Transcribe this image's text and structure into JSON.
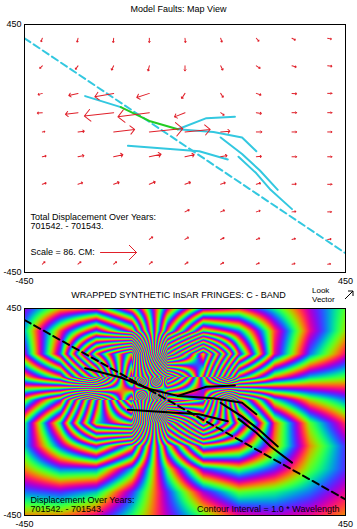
{
  "chart_data": [
    {
      "type": "vector",
      "title": "Model Faults: Map View",
      "xlim": [
        -450,
        450
      ],
      "ylim": [
        -450,
        450
      ],
      "xticks": [
        -450,
        450
      ],
      "yticks": [
        -450,
        450
      ],
      "color": "#e0202a",
      "annotation": [
        "Total Displacement Over Years:",
        "701542. - 701543."
      ],
      "scale_label": "Scale = 86. CM:",
      "scale_value": 86,
      "x": [
        -400,
        -300,
        -200,
        -100,
        0,
        100,
        200,
        300,
        400,
        -400,
        -300,
        -200,
        -100,
        0,
        100,
        200,
        300,
        400,
        -400,
        -300,
        -200,
        -100,
        0,
        100,
        200,
        300,
        400,
        -400,
        -300,
        -200,
        -100,
        0,
        100,
        200,
        300,
        400,
        -400,
        -300,
        -200,
        -100,
        0,
        100,
        200,
        300,
        400,
        -400,
        -300,
        -200,
        -100,
        0,
        100,
        200,
        300,
        400,
        -400,
        -300,
        -200,
        -100,
        0,
        100,
        200,
        300,
        400,
        0,
        100,
        200,
        300,
        400,
        -100,
        0,
        100,
        200,
        300,
        400,
        -400,
        -300,
        -200,
        -100,
        0,
        100,
        200,
        300,
        400
      ],
      "y": [
        400,
        400,
        400,
        400,
        400,
        400,
        400,
        400,
        400,
        300,
        300,
        300,
        300,
        300,
        300,
        300,
        300,
        300,
        200,
        200,
        200,
        200,
        200,
        200,
        200,
        200,
        200,
        130,
        130,
        130,
        130,
        130,
        130,
        130,
        130,
        130,
        60,
        60,
        60,
        60,
        60,
        60,
        60,
        60,
        60,
        -30,
        -30,
        -30,
        -30,
        -30,
        -30,
        -30,
        -30,
        -30,
        -130,
        -130,
        -130,
        -130,
        -130,
        -130,
        -130,
        -130,
        -130,
        -230,
        -230,
        -230,
        -230,
        -230,
        -330,
        -330,
        -330,
        -330,
        -330,
        -330,
        -420,
        -420,
        -420,
        -420,
        -420,
        -420,
        -420,
        -420,
        -420
      ],
      "u": [
        -3,
        -2,
        -1,
        0,
        1,
        3,
        6,
        8,
        9,
        -6,
        -6,
        -5,
        -3,
        0,
        5,
        9,
        10,
        10,
        -10,
        -22,
        -45,
        -30,
        -8,
        6,
        11,
        11,
        10,
        -12,
        -30,
        -70,
        -75,
        -25,
        8,
        12,
        11,
        10,
        6,
        15,
        50,
        80,
        60,
        22,
        13,
        11,
        10,
        9,
        14,
        22,
        28,
        22,
        15,
        12,
        11,
        10,
        9,
        11,
        13,
        14,
        13,
        11,
        10,
        10,
        10,
        10,
        9,
        9,
        9,
        9,
        8,
        8,
        8,
        8,
        8,
        8,
        6,
        7,
        7,
        7,
        7,
        7,
        7,
        7,
        7
      ],
      "v": [
        -8,
        -9,
        -10,
        -10,
        -10,
        -9,
        -7,
        -4,
        -2,
        -6,
        -8,
        -10,
        -12,
        -12,
        -10,
        -6,
        -3,
        -1,
        -3,
        -5,
        -8,
        -10,
        -12,
        -9,
        -4,
        -1,
        0,
        -1,
        -4,
        -8,
        -10,
        -10,
        -6,
        -2,
        0,
        0,
        1,
        2,
        6,
        8,
        6,
        2,
        0,
        0,
        0,
        2,
        3,
        5,
        6,
        5,
        3,
        1,
        0,
        0,
        3,
        4,
        5,
        6,
        5,
        4,
        3,
        1,
        0,
        5,
        4,
        3,
        1,
        0,
        6,
        5,
        4,
        3,
        2,
        1,
        6,
        6,
        6,
        6,
        5,
        4,
        3,
        2,
        1
      ],
      "faults": [
        {
          "color": "#33c8e0",
          "line_style": "dashed",
          "x": [
            -450,
            450
          ],
          "y": [
            400,
            -380
          ]
        },
        {
          "color": "#33c8e0",
          "line_style": "solid",
          "x": [
            -280,
            -180
          ],
          "y": [
            190,
            150
          ]
        },
        {
          "color": "#33c8e0",
          "line_style": "solid",
          "x": [
            -20,
            60,
            140
          ],
          "y": [
            70,
            110,
            115
          ]
        },
        {
          "color": "#33c8e0",
          "line_style": "solid",
          "x": [
            -20,
            80,
            160,
            200
          ],
          "y": [
            70,
            60,
            40,
            -10
          ]
        },
        {
          "color": "#33c8e0",
          "line_style": "solid",
          "x": [
            -160,
            -60,
            40,
            120
          ],
          "y": [
            10,
            0,
            -10,
            -40
          ]
        },
        {
          "color": "#33c8e0",
          "line_style": "solid",
          "x": [
            100,
            160,
            210,
            260
          ],
          "y": [
            40,
            -20,
            -80,
            -150
          ]
        },
        {
          "color": "#33c8e0",
          "line_style": "solid",
          "x": [
            150,
            200,
            240,
            300
          ],
          "y": [
            -30,
            -90,
            -150,
            -220
          ]
        },
        {
          "color": "#22cc22",
          "line_style": "solid",
          "x": [
            -180,
            -100,
            -20
          ],
          "y": [
            150,
            100,
            70
          ]
        }
      ]
    },
    {
      "type": "raster",
      "title": "WRAPPED SYNTHETIC InSAR FRINGES: C - BAND",
      "look_label": "Look Vector",
      "xlim": [
        -450,
        450
      ],
      "ylim": [
        -450,
        450
      ],
      "xticks": [
        -450,
        450
      ],
      "yticks": [
        -450,
        450
      ],
      "annotation": [
        "Displacement Over Years:",
        "701542. - 701543."
      ],
      "contour_label": "Contour Interval = 1.0 * Wavelength",
      "contour_interval": 1.0,
      "x": [
        -450,
        -350,
        -250,
        -150,
        -50,
        50,
        150,
        250,
        350,
        450
      ],
      "y": [
        450,
        350,
        250,
        150,
        50,
        -50,
        -150,
        -250,
        -350,
        -450
      ],
      "values": [
        [
          -2.2,
          -2.8,
          -2.9,
          -1.7,
          0.8,
          2.6,
          2.9,
          2.4,
          1.8,
          1.3
        ],
        [
          -2.5,
          -4.0,
          -5.4,
          -4.0,
          2.0,
          5.4,
          4.6,
          3.0,
          1.9,
          1.2
        ],
        [
          -2.2,
          -4.4,
          -9.0,
          -11.9,
          6.8,
          11.3,
          5.9,
          2.9,
          1.6,
          0.9
        ],
        [
          -0.8,
          -1.9,
          -5.7,
          -13.5,
          15.0,
          9.9,
          2.8,
          1.1,
          0.5,
          0.3
        ],
        [
          1.2,
          2.7,
          7.7,
          13.0,
          -14.0,
          -12.6,
          -4.0,
          -1.6,
          -0.8,
          -0.4
        ],
        [
          2.4,
          4.5,
          8.4,
          9.4,
          -5.1,
          -9.9,
          -5.8,
          -3.0,
          -1.7,
          -1.0
        ],
        [
          2.5,
          3.7,
          4.8,
          3.3,
          -1.6,
          -4.7,
          -4.2,
          -2.9,
          -1.9,
          -1.3
        ],
        [
          2.1,
          2.6,
          2.6,
          1.5,
          -0.7,
          -2.3,
          -2.7,
          -2.3,
          -1.7,
          -1.3
        ],
        [
          1.6,
          1.7,
          1.5,
          0.7,
          -0.3,
          -1.2,
          -1.7,
          -1.6,
          -1.4,
          -1.1
        ],
        [
          1.1,
          1.1,
          0.9,
          0.4,
          -0.2,
          -0.7,
          -1.1,
          -1.2,
          -1.1,
          -0.9
        ]
      ],
      "faults": [
        {
          "color": "#000000",
          "line_style": "dashed",
          "x": [
            -450,
            450
          ],
          "y": [
            400,
            -380
          ]
        },
        {
          "color": "#000000",
          "line_style": "solid",
          "x": [
            -280,
            -180
          ],
          "y": [
            190,
            150
          ]
        },
        {
          "color": "#000000",
          "line_style": "solid",
          "x": [
            -20,
            60,
            140
          ],
          "y": [
            70,
            110,
            115
          ]
        },
        {
          "color": "#000000",
          "line_style": "solid",
          "x": [
            -20,
            80,
            160,
            200
          ],
          "y": [
            70,
            60,
            40,
            -10
          ]
        },
        {
          "color": "#000000",
          "line_style": "solid",
          "x": [
            -160,
            -60,
            40,
            120
          ],
          "y": [
            10,
            0,
            -10,
            -40
          ]
        },
        {
          "color": "#000000",
          "line_style": "solid",
          "x": [
            100,
            160,
            210,
            260
          ],
          "y": [
            40,
            -20,
            -80,
            -150
          ]
        },
        {
          "color": "#000000",
          "line_style": "solid",
          "x": [
            150,
            200,
            240,
            300
          ],
          "y": [
            -30,
            -90,
            -150,
            -220
          ]
        },
        {
          "color": "#000000",
          "line_style": "solid",
          "x": [
            -180,
            -100,
            -20
          ],
          "y": [
            150,
            100,
            70
          ]
        }
      ]
    }
  ]
}
